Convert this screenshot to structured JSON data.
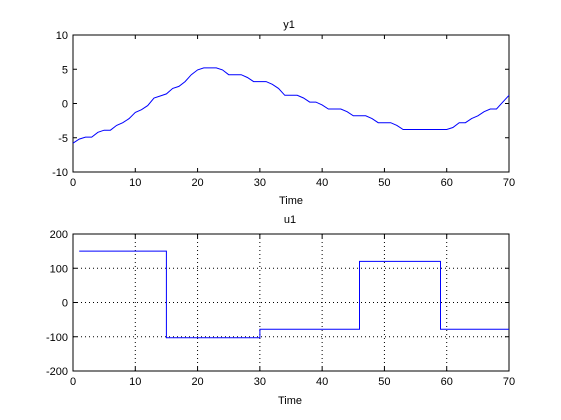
{
  "chart_data": [
    {
      "type": "line",
      "title": "y1",
      "xlabel": "Time",
      "ylabel": "",
      "xlim": [
        0,
        70
      ],
      "ylim": [
        -10,
        10
      ],
      "xticks": [
        0,
        10,
        20,
        30,
        40,
        50,
        60,
        70
      ],
      "yticks": [
        -10,
        -5,
        0,
        5,
        10
      ],
      "grid": false,
      "line_color": "#0000ff",
      "series": [
        {
          "x": [
            0,
            1,
            2,
            3,
            4,
            5,
            6,
            7,
            8,
            9,
            10,
            11,
            12,
            13,
            14,
            15,
            16,
            17,
            18,
            19,
            20,
            21,
            22,
            23,
            24,
            25,
            26,
            27,
            28,
            29,
            30,
            31,
            32,
            33,
            34,
            35,
            36,
            37,
            38,
            39,
            40,
            41,
            42,
            43,
            44,
            45,
            46,
            47,
            48,
            49,
            50,
            51,
            52,
            53,
            54,
            55,
            56,
            57,
            58,
            59,
            60,
            61,
            62,
            63,
            64,
            65,
            66,
            67,
            68,
            69,
            70
          ],
          "values": [
            -5.8,
            -5.2,
            -4.9,
            -4.9,
            -4.2,
            -3.9,
            -3.9,
            -3.2,
            -2.8,
            -2.2,
            -1.3,
            -0.9,
            -0.3,
            0.8,
            1.1,
            1.4,
            2.2,
            2.5,
            3.2,
            4.2,
            4.9,
            5.2,
            5.2,
            5.2,
            4.9,
            4.2,
            4.2,
            4.2,
            3.8,
            3.2,
            3.2,
            3.2,
            2.8,
            2.2,
            1.2,
            1.2,
            1.2,
            0.8,
            0.2,
            0.2,
            -0.2,
            -0.8,
            -0.8,
            -0.8,
            -1.2,
            -1.8,
            -1.8,
            -1.8,
            -2.2,
            -2.8,
            -2.8,
            -2.8,
            -3.2,
            -3.8,
            -3.8,
            -3.8,
            -3.8,
            -3.8,
            -3.8,
            -3.8,
            -3.8,
            -3.5,
            -2.8,
            -2.8,
            -2.2,
            -1.8,
            -1.2,
            -0.8,
            -0.8,
            0.2,
            1.2
          ]
        }
      ]
    },
    {
      "type": "line",
      "title": "u1",
      "xlabel": "Time",
      "ylabel": "",
      "xlim": [
        0,
        70
      ],
      "ylim": [
        -200,
        200
      ],
      "xticks": [
        0,
        10,
        20,
        30,
        40,
        50,
        60,
        70
      ],
      "yticks": [
        -200,
        -100,
        0,
        100,
        200
      ],
      "grid": true,
      "line_color": "#0000ff",
      "series": [
        {
          "x": [
            1,
            15,
            15,
            30,
            30,
            46,
            46,
            59,
            59,
            70
          ],
          "values": [
            150,
            150,
            -103,
            -103,
            -78,
            -78,
            120,
            120,
            -78,
            -78
          ]
        }
      ]
    }
  ]
}
